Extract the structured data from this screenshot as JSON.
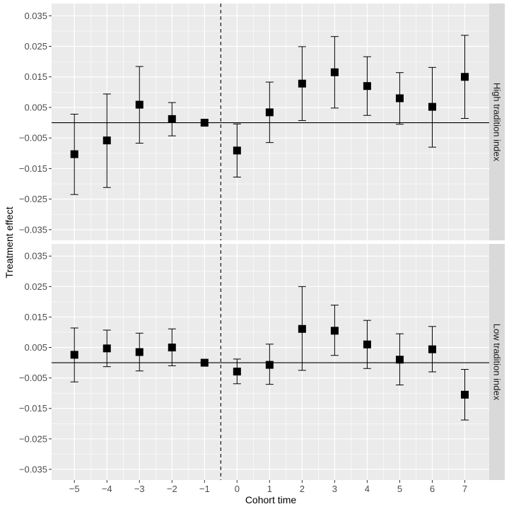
{
  "chart_data": {
    "type": "scatter",
    "subtype": "point-with-errorbars, faceted",
    "xlabel": "Cohort time",
    "ylabel": "Treatment effect",
    "x_ticks": [
      -5,
      -4,
      -3,
      -2,
      -1,
      0,
      1,
      2,
      3,
      4,
      5,
      6,
      7
    ],
    "x_tick_labels": [
      "−5",
      "−4",
      "−3",
      "−2",
      "−1",
      "0",
      "1",
      "2",
      "3",
      "4",
      "5",
      "6",
      "7"
    ],
    "xlim": [
      -5.7,
      7.75
    ],
    "y_ticks": [
      -0.035,
      -0.025,
      -0.015,
      -0.005,
      0.005,
      0.015,
      0.025,
      0.035
    ],
    "y_tick_labels": [
      "−0.035",
      "−0.025",
      "−0.015",
      "−0.005",
      "0.005",
      "0.015",
      "0.025",
      "0.035"
    ],
    "ylim": [
      -0.0385,
      0.039
    ],
    "hline_y": 0,
    "vline_x": -0.5,
    "grid": true,
    "marker": "square",
    "colors": {
      "panel_bg": "#ebebeb",
      "grid": "#ffffff",
      "strip_bg": "#d9d9d9",
      "point": "#000000",
      "tick_text": "#4d4d4d"
    },
    "facets": [
      {
        "label": "High tradition index",
        "points": [
          {
            "x": -5,
            "y": -0.0103,
            "lo": -0.0235,
            "hi": 0.0028
          },
          {
            "x": -4,
            "y": -0.0058,
            "lo": -0.0212,
            "hi": 0.0094
          },
          {
            "x": -3,
            "y": 0.0059,
            "lo": -0.0067,
            "hi": 0.0184
          },
          {
            "x": -2,
            "y": 0.0012,
            "lo": -0.0043,
            "hi": 0.0066
          },
          {
            "x": -1,
            "y": 0.0,
            "lo": 0.0,
            "hi": 0.0
          },
          {
            "x": 0,
            "y": -0.0091,
            "lo": -0.0178,
            "hi": -0.0004
          },
          {
            "x": 1,
            "y": 0.0034,
            "lo": -0.0065,
            "hi": 0.0133
          },
          {
            "x": 2,
            "y": 0.0128,
            "lo": 0.0007,
            "hi": 0.0249
          },
          {
            "x": 3,
            "y": 0.0165,
            "lo": 0.0048,
            "hi": 0.0282
          },
          {
            "x": 4,
            "y": 0.012,
            "lo": 0.0024,
            "hi": 0.0216
          },
          {
            "x": 5,
            "y": 0.008,
            "lo": -0.0005,
            "hi": 0.0164
          },
          {
            "x": 6,
            "y": 0.0052,
            "lo": -0.008,
            "hi": 0.0181
          },
          {
            "x": 7,
            "y": 0.015,
            "lo": 0.0014,
            "hi": 0.0286
          }
        ]
      },
      {
        "label": "Low tradition index",
        "points": [
          {
            "x": -5,
            "y": 0.0026,
            "lo": -0.0063,
            "hi": 0.0114
          },
          {
            "x": -4,
            "y": 0.0047,
            "lo": -0.0013,
            "hi": 0.0107
          },
          {
            "x": -3,
            "y": 0.0035,
            "lo": -0.0027,
            "hi": 0.0097
          },
          {
            "x": -2,
            "y": 0.005,
            "lo": -0.001,
            "hi": 0.0111
          },
          {
            "x": -1,
            "y": 0.0,
            "lo": 0.0,
            "hi": 0.0
          },
          {
            "x": 0,
            "y": -0.0029,
            "lo": -0.0069,
            "hi": 0.0012
          },
          {
            "x": 1,
            "y": -0.0007,
            "lo": -0.0071,
            "hi": 0.0061
          },
          {
            "x": 2,
            "y": 0.0111,
            "lo": -0.0025,
            "hi": 0.025
          },
          {
            "x": 3,
            "y": 0.0105,
            "lo": 0.0024,
            "hi": 0.0189
          },
          {
            "x": 4,
            "y": 0.006,
            "lo": -0.0019,
            "hi": 0.0139
          },
          {
            "x": 5,
            "y": 0.001,
            "lo": -0.0073,
            "hi": 0.0095
          },
          {
            "x": 6,
            "y": 0.0044,
            "lo": -0.003,
            "hi": 0.0119
          },
          {
            "x": 7,
            "y": -0.0105,
            "lo": -0.0188,
            "hi": -0.0022
          }
        ]
      }
    ]
  }
}
